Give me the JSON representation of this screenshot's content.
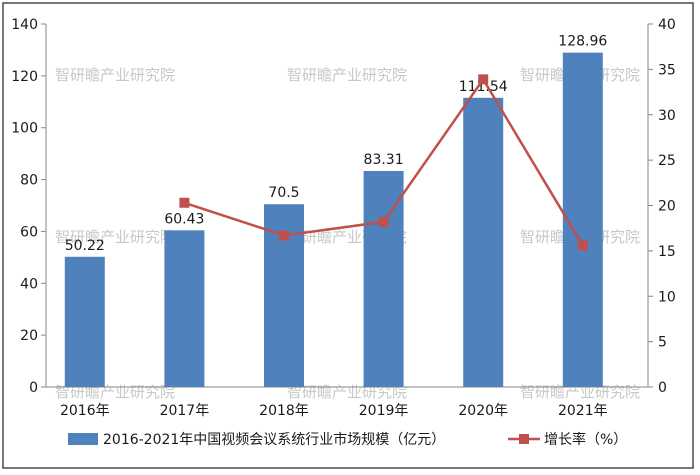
{
  "chart_data": {
    "type": "bar",
    "categories": [
      "2016年",
      "2017年",
      "2018年",
      "2019年",
      "2020年",
      "2021年"
    ],
    "series": [
      {
        "name": "2016-2021年中国视频会议系统行业市场规模（亿元）",
        "type": "bar",
        "axis": "left",
        "values": [
          50.22,
          60.43,
          70.5,
          83.31,
          111.54,
          128.96
        ],
        "labels": [
          "50.22",
          "60.43",
          "70.5",
          "83.31",
          "111.54",
          "128.96"
        ],
        "color": "#4f81bd"
      },
      {
        "name": "增长率（%）",
        "type": "line",
        "axis": "right",
        "values": [
          null,
          20.3,
          16.7,
          18.2,
          33.9,
          15.6
        ],
        "color": "#c0504d"
      }
    ],
    "y_left": {
      "min": 0,
      "max": 140,
      "ticks": [
        "0",
        "20",
        "40",
        "60",
        "80",
        "100",
        "120",
        "140"
      ]
    },
    "y_right": {
      "min": 0,
      "max": 40,
      "ticks": [
        "0",
        "5",
        "10",
        "15",
        "20",
        "25",
        "30",
        "35",
        "40"
      ]
    },
    "grid": false,
    "legend": "bottom"
  },
  "watermark": "智研瞻产业研究院",
  "colors": {
    "bar": "#4f81bd",
    "line": "#c0504d",
    "axis": "#868686",
    "frame": "#4a4a4a",
    "text": "#1a1a1a",
    "watermark": "#c8c8c8"
  }
}
